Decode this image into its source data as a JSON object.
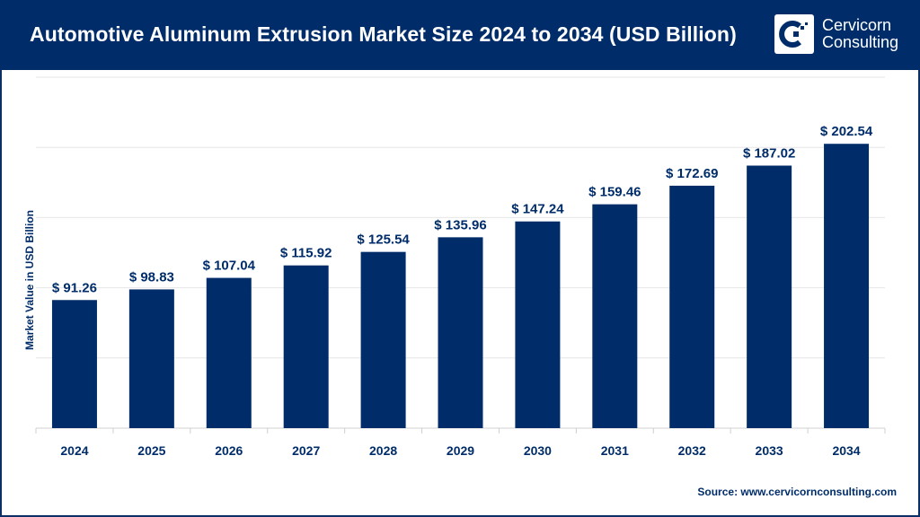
{
  "header": {
    "title": "Automotive Aluminum Extrusion Market Size 2024 to 2034 (USD Billion)"
  },
  "logo": {
    "line1": "Cervicorn",
    "line2": "Consulting"
  },
  "source": "Source: www.cervicornconsulting.com",
  "colors": {
    "bar": "#002d6a",
    "header": "#002d6a",
    "grid": "#e6e6e6"
  },
  "chart_data": {
    "type": "bar",
    "title": "Automotive Aluminum Extrusion Market Size 2024 to 2034 (USD Billion)",
    "xlabel": "",
    "ylabel": "Market Value in USD Billion",
    "categories": [
      "2024",
      "2025",
      "2026",
      "2027",
      "2028",
      "2029",
      "2030",
      "2031",
      "2032",
      "2033",
      "2034"
    ],
    "values": [
      91.26,
      98.83,
      107.04,
      115.92,
      125.54,
      135.96,
      147.24,
      159.46,
      172.69,
      187.02,
      202.54
    ],
    "data_labels": [
      "$ 91.26",
      "$ 98.83",
      "$ 107.04",
      "$ 115.92",
      "$ 125.54",
      "$ 135.96",
      "$ 147.24",
      "$ 159.46",
      "$ 172.69",
      "$ 187.02",
      "$ 202.54"
    ],
    "ylim": [
      0,
      250
    ],
    "grid_step": 50,
    "grid": true,
    "y_tick_labels_shown": false,
    "legend": "none"
  }
}
